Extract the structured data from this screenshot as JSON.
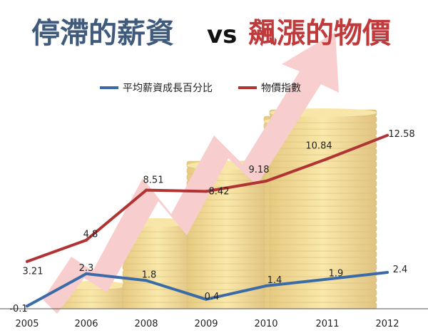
{
  "title": {
    "left": "停滯的薪資",
    "vs": "vs",
    "right": "飆漲的物價",
    "left_color": "#3f5a7a",
    "right_color": "#c0393b"
  },
  "chart_data": {
    "type": "line",
    "categories": [
      "2005",
      "2006",
      "2008",
      "2009",
      "2010",
      "2011",
      "2012"
    ],
    "series": [
      {
        "name": "平均薪資成長百分比",
        "color": "#3a6aa8",
        "values": [
          -0.1,
          2.3,
          1.8,
          0.4,
          1.4,
          1.9,
          2.4
        ],
        "labels": [
          "-0.1",
          "2.3",
          "1.8",
          "0.4",
          "1.4",
          "1.9",
          "2.4"
        ]
      },
      {
        "name": "物價指數",
        "color": "#b03434",
        "values": [
          3.21,
          4.8,
          8.51,
          8.42,
          9.18,
          10.84,
          12.58
        ],
        "labels": [
          "3.21",
          "4.8",
          "8.51",
          "8.42",
          "9.18",
          "10.84",
          "12.58"
        ]
      }
    ],
    "ylim": [
      -0.3,
      14
    ],
    "grid": false,
    "legend_position": "top"
  },
  "background": {
    "coin_color": "#e3b830",
    "arrow_color": "#f4a6a6"
  }
}
